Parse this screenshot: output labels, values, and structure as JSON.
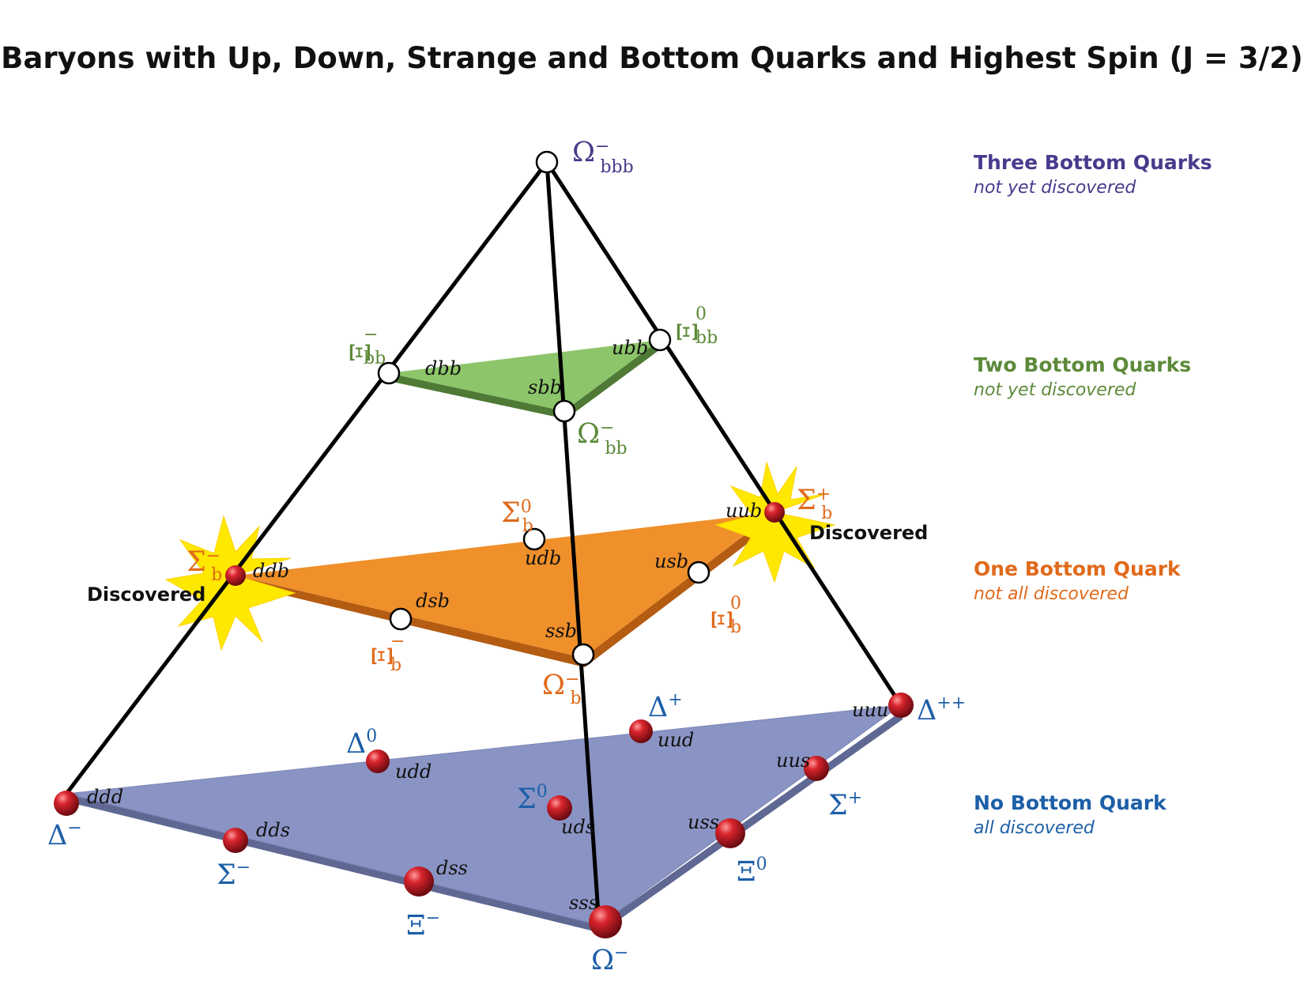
{
  "title": "Baryons with Up, Down, Strange and Bottom Quarks and Highest Spin (J = 3/2)",
  "colors": {
    "three": "#4a3a8c",
    "two": "#5d8a3a",
    "one": "#e06a1b",
    "none": "#1d5fa8",
    "plane_two": "#8cc56a",
    "plane_one": "#f0902a",
    "plane_none": "#8a94c4",
    "burst": "#ffe800"
  },
  "legend": [
    {
      "heading": "Three Bottom Quarks",
      "status": "not yet discovered",
      "color": "#4a3a8c"
    },
    {
      "heading": "Two Bottom Quarks",
      "status": "not yet discovered",
      "color": "#5d8a3a"
    },
    {
      "heading": "One Bottom Quark",
      "status": "not all discovered",
      "color": "#e06a1b"
    },
    {
      "heading": "No Bottom Quark",
      "status": "all discovered",
      "color": "#1d5fa8"
    }
  ],
  "discovered_label": "Discovered",
  "particles": {
    "omega_bbb": {
      "symbol": "Ω",
      "sub": "bbb",
      "sup": "−"
    },
    "xi_bb_minus": {
      "symbol": "Ξ",
      "sub": "bb",
      "sup": "−",
      "quarks": "dbb"
    },
    "xi_bb_zero": {
      "symbol": "Ξ",
      "sub": "bb",
      "sup": "0",
      "quarks": "ubb"
    },
    "omega_bb": {
      "symbol": "Ω",
      "sub": "bb",
      "sup": "−",
      "quarks": "sbb"
    },
    "sigma_b_minus": {
      "symbol": "Σ",
      "sub": "b",
      "sup": "−",
      "quarks": "ddb"
    },
    "sigma_b_zero": {
      "symbol": "Σ",
      "sub": "b",
      "sup": "0",
      "quarks": "udb"
    },
    "sigma_b_plus": {
      "symbol": "Σ",
      "sub": "b",
      "sup": "+",
      "quarks": "uub"
    },
    "xi_b_minus": {
      "symbol": "Ξ",
      "sub": "b",
      "sup": "−",
      "quarks": "dsb"
    },
    "xi_b_zero": {
      "symbol": "Ξ",
      "sub": "b",
      "sup": "0",
      "quarks": "usb"
    },
    "omega_b": {
      "symbol": "Ω",
      "sub": "b",
      "sup": "−",
      "quarks": "ssb"
    },
    "delta_minus": {
      "symbol": "Δ",
      "sup": "−",
      "quarks": "ddd"
    },
    "delta_zero": {
      "symbol": "Δ",
      "sup": "0",
      "quarks": "udd"
    },
    "delta_plus": {
      "symbol": "Δ",
      "sup": "+",
      "quarks": "uud"
    },
    "delta_plusplus": {
      "symbol": "Δ",
      "sup": "++",
      "quarks": "uuu"
    },
    "sigma_minus": {
      "symbol": "Σ",
      "sup": "−",
      "quarks": "dds"
    },
    "sigma_zero": {
      "symbol": "Σ",
      "sup": "0",
      "quarks": "uds"
    },
    "sigma_plus": {
      "symbol": "Σ",
      "sup": "+",
      "quarks": "uus"
    },
    "xi_minus": {
      "symbol": "Ξ",
      "sup": "−",
      "quarks": "dss"
    },
    "xi_zero": {
      "symbol": "Ξ",
      "sup": "0",
      "quarks": "uss"
    },
    "omega_minus": {
      "symbol": "Ω",
      "sup": "−",
      "quarks": "sss"
    }
  }
}
